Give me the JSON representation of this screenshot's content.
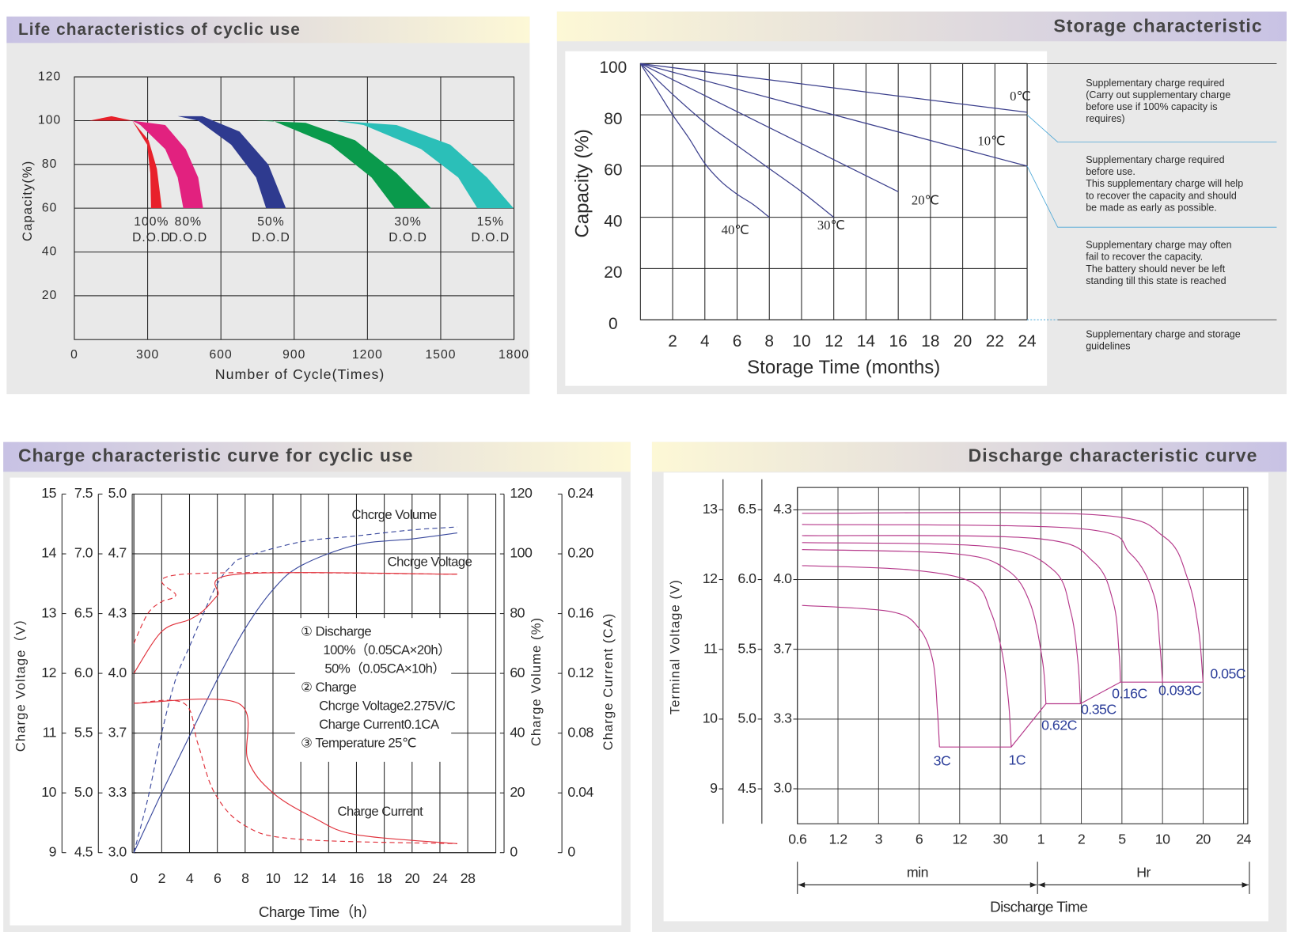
{
  "chart_data": [
    {
      "type": "band",
      "title": "Life characteristics of cyclic use",
      "xlabel": "Number of Cycle(Times)",
      "ylabel": "Capacity(%)",
      "xlim": [
        0,
        1800
      ],
      "ylim": [
        0,
        120
      ],
      "xticks": [
        0,
        300,
        600,
        900,
        1200,
        1500,
        1800
      ],
      "yticks": [
        20,
        40,
        60,
        80,
        100,
        120
      ],
      "series": [
        {
          "name_lines": [
            "100%",
            "D.O.D"
          ],
          "color": "#e8212b",
          "x": [
            61,
            152,
            237,
            304,
            338,
            358
          ],
          "values": [
            100,
            102,
            100,
            91,
            78,
            60
          ],
          "inner_x": [
            314,
            311,
            298,
            237
          ],
          "inner_values": [
            60,
            76,
            89,
            100
          ]
        },
        {
          "name_lines": [
            "80%",
            "D.O.D"
          ],
          "color": "#e2217f",
          "x": [
            237,
            372,
            456,
            507,
            527
          ],
          "values": [
            100,
            98,
            87,
            74,
            60
          ],
          "inner_x": [
            446,
            423,
            372,
            270
          ],
          "inner_values": [
            60,
            74,
            87,
            98
          ]
        },
        {
          "name_lines": [
            "50%",
            "D.O.D"
          ],
          "color": "#2e3a8f",
          "x": [
            423,
            524,
            676,
            794,
            866
          ],
          "values": [
            102,
            102,
            95,
            80,
            60
          ],
          "inner_x": [
            785,
            744,
            642,
            507
          ],
          "inner_values": [
            60,
            74,
            89,
            100
          ]
        },
        {
          "name_lines": [
            "30%",
            "D.O.D"
          ],
          "color": "#0a9a4c",
          "x": [
            744,
            947,
            1150,
            1319,
            1461
          ],
          "values": [
            100,
            99,
            91,
            76,
            60
          ],
          "inner_x": [
            1312,
            1217,
            1048,
            811
          ],
          "inner_values": [
            60,
            74,
            89,
            100
          ]
        },
        {
          "name_lines": [
            "15%",
            "D.O.D"
          ],
          "color": "#2bbfb8",
          "x": [
            1065,
            1319,
            1539,
            1690,
            1798
          ],
          "values": [
            100,
            98,
            89,
            74,
            60
          ],
          "inner_x": [
            1650,
            1572,
            1420,
            1184
          ],
          "inner_values": [
            60,
            74,
            87,
            98
          ]
        }
      ]
    },
    {
      "type": "line",
      "title": "Storage characteristic",
      "xlabel": "Storage Time (months)",
      "ylabel": "Capacity (%)",
      "xlim": [
        0,
        24
      ],
      "ylim": [
        0,
        100
      ],
      "xticks": [
        2,
        4,
        6,
        8,
        10,
        12,
        14,
        16,
        18,
        20,
        22,
        24
      ],
      "yticks": [
        0,
        20,
        40,
        60,
        80,
        100
      ],
      "color": "#3b3f8c",
      "series": [
        {
          "name": "0℃",
          "x": [
            0,
            24
          ],
          "values": [
            100,
            81
          ]
        },
        {
          "name": "10℃",
          "x": [
            0,
            24
          ],
          "values": [
            100,
            60
          ]
        },
        {
          "name": "20℃",
          "x": [
            0,
            16
          ],
          "values": [
            100,
            50
          ]
        },
        {
          "name": "30℃",
          "x": [
            0,
            2,
            4,
            6,
            8,
            10,
            12
          ],
          "values": [
            100,
            88,
            77,
            68,
            59,
            50,
            40
          ]
        },
        {
          "name": "40℃",
          "x": [
            0,
            1,
            2,
            3,
            4,
            5,
            6,
            7,
            8
          ],
          "values": [
            100,
            90,
            80,
            71,
            61,
            54,
            49,
            45,
            40
          ]
        }
      ],
      "notes": [
        [
          "Supplementary charge required",
          "(Carry out supplementary charge",
          "before use if 100% capacity is",
          "requires)"
        ],
        [
          "Supplementary charge required",
          "before use.",
          "This supplementary charge will help",
          "to recover the capacity and should",
          "be made  as early as possible."
        ],
        [
          "Supplementary charge may often",
          "fail to recover the capacity.",
          "The battery should never be left",
          "standing till this state is reached"
        ],
        [
          "Supplementary charge and storage",
          "guidelines"
        ]
      ]
    },
    {
      "type": "multi-axis-line",
      "title": "Charge characteristic curve for cyclic use",
      "xlabel": "Charge Time（h）",
      "ylabel": "Charge Voltage（V）",
      "y2label": "Charge Volume (%)",
      "y3label": "Charge Current (CA)",
      "xticks": [
        0,
        2,
        4,
        6,
        8,
        10,
        12,
        14,
        16,
        18,
        20,
        24,
        28
      ],
      "y_axes": [
        {
          "lim": [
            9,
            15
          ],
          "ticks": [
            15,
            14,
            13,
            12,
            11,
            10,
            9
          ]
        },
        {
          "lim": [
            4.5,
            7.5
          ],
          "ticks": [
            7.5,
            {
              "value": 7,
              "label": "7.0"
            },
            6.5,
            {
              "value": 6,
              "label": "6.0"
            },
            5.5,
            {
              "value": 5,
              "label": "5.0"
            },
            4.5
          ]
        },
        {
          "lim": [
            3,
            5
          ],
          "ticks": [
            {
              "value": 5,
              "label": "5.0"
            },
            {
              "value": 4.667,
              "label": "4.7"
            },
            {
              "value": 4.333,
              "label": "4.3"
            },
            {
              "value": 4,
              "label": "4.0"
            },
            {
              "value": 3.667,
              "label": "3.7"
            },
            {
              "value": 3.333,
              "label": "3.3"
            },
            {
              "value": 3,
              "label": "3.0"
            }
          ]
        },
        {
          "lim": [
            0,
            120
          ],
          "ticks": [
            120,
            100,
            80,
            60,
            40,
            20,
            0
          ]
        },
        {
          "lim": [
            0,
            0.24
          ],
          "ticks": [
            0.24,
            {
              "value": 0.2,
              "label": "0.20"
            },
            0.16,
            0.12,
            0.08,
            0.04,
            0
          ]
        }
      ],
      "series": [
        {
          "axis": 3,
          "dashed": false,
          "color": "#3b4a9e",
          "x": [
            0,
            2,
            4,
            6,
            8,
            10,
            12,
            16,
            20,
            26.5
          ],
          "values": [
            0,
            20,
            39,
            58,
            75,
            88,
            96,
            103,
            105,
            107
          ]
        },
        {
          "axis": 3,
          "dashed": true,
          "color": "#3b4a9e",
          "x": [
            0,
            1,
            2,
            3,
            4,
            5,
            6,
            7,
            8,
            12,
            16,
            20,
            26.5
          ],
          "values": [
            0,
            18,
            40,
            58,
            69,
            80,
            90,
            96,
            99,
            104,
            106,
            108,
            109
          ]
        },
        {
          "axis": 0,
          "dashed": false,
          "color": "#e0303a",
          "x": [
            0,
            2,
            4,
            5,
            6,
            7.5,
            26.5
          ],
          "values": [
            12,
            12.7,
            12.9,
            13.05,
            13.3,
            13.66,
            13.66
          ]
        },
        {
          "axis": 0,
          "dashed": true,
          "color": "#e0303a",
          "x": [
            0,
            1,
            2,
            3,
            3.6,
            26.5
          ],
          "values": [
            12.5,
            13,
            13.2,
            13.3,
            13.66,
            13.66
          ]
        },
        {
          "axis": 4,
          "dashed": false,
          "color": "#e0303a",
          "x": [
            0,
            7.5,
            8.2,
            10,
            13,
            16,
            26.5
          ],
          "values": [
            0.1,
            0.1,
            0.062,
            0.04,
            0.023,
            0.012,
            0.006
          ]
        },
        {
          "axis": 4,
          "dashed": true,
          "color": "#e0303a",
          "x": [
            0,
            3.6,
            4.6,
            5.8,
            8,
            11.8,
            26.5
          ],
          "values": [
            0.1,
            0.1,
            0.073,
            0.04,
            0.018,
            0.009,
            0.006
          ]
        }
      ],
      "annotations": [
        "Chcrge Volume",
        "Chcrge Voltage",
        "Charge Current"
      ],
      "legend_lines": [
        "① Discharge",
        "100%（0.05CA×20h）",
        "50%（0.05CA×10h）",
        "② Charge",
        "Chcrge Voltage2.275V/C",
        "Charge Current0.1CA",
        "③ Temperature 25℃"
      ]
    },
    {
      "type": "discharge",
      "title": "Discharge characteristic curve",
      "xlabel": "Discharge Time",
      "ylabel": "Terminal Voltage (V)",
      "xlabel_min": "min",
      "xlabel_hr": "Hr",
      "xticks_min": [
        0.6,
        1.2,
        3,
        6,
        12,
        30
      ],
      "xticks_hr": [
        1,
        2,
        5,
        10,
        20,
        24
      ],
      "y_axes": [
        {
          "lim": [
            8.5,
            13.32
          ],
          "ticks": [
            13,
            12,
            11,
            10,
            9
          ]
        },
        {
          "lim": [
            4.25,
            6.66
          ],
          "ticks": [
            6.5,
            {
              "value": 6,
              "label": "6.0"
            },
            5.5,
            {
              "value": 5,
              "label": "5.0"
            },
            4.5
          ]
        },
        {
          "lim": [
            2.833,
            4.44
          ],
          "ticks": [
            {
              "value": 4.333,
              "label": "4.3"
            },
            {
              "value": 4,
              "label": "4.0"
            },
            {
              "value": 3.667,
              "label": "3.7"
            },
            {
              "value": 3.333,
              "label": "3.3"
            },
            {
              "value": 3,
              "label": "3.0"
            }
          ]
        }
      ],
      "color": "#b5388a",
      "label_color": "#2c3e9a",
      "series": [
        {
          "name": "3C",
          "x": [
            0.65,
            3.7,
            6,
            7.6,
            8.2,
            8.5
          ],
          "values": [
            11.63,
            11.54,
            11.3,
            10.83,
            10.12,
            9.6
          ]
        },
        {
          "name": "1C",
          "x": [
            0.65,
            5.1,
            15.9,
            24.2,
            31,
            34.6,
            36.2
          ],
          "values": [
            12.2,
            12.14,
            11.96,
            11.54,
            10.95,
            10.24,
            9.6
          ]
        },
        {
          "name": "0.62C",
          "x": [
            0.65,
            11.1,
            33.6,
            50,
            61.8,
            65.5
          ],
          "values": [
            12.43,
            12.37,
            12.14,
            11.66,
            10.83,
            10.22
          ]
        },
        {
          "name": "0.35C",
          "x": [
            0.65,
            24.2,
            74,
            100,
            113,
            118
          ],
          "values": [
            12.53,
            12.47,
            12.14,
            11.54,
            10.83,
            10.22
          ]
        },
        {
          "name": "0.16C",
          "x": [
            0.65,
            54.5,
            159,
            248,
            281,
            290
          ],
          "values": [
            12.63,
            12.59,
            12.25,
            11.66,
            10.95,
            10.53
          ]
        },
        {
          "name": "0.093C",
          "x": [
            0.65,
            117,
            347,
            517,
            573,
            600
          ],
          "values": [
            12.79,
            12.73,
            12.37,
            11.78,
            11.07,
            10.53
          ]
        },
        {
          "name": "0.05C",
          "x": [
            0.65,
            159,
            619,
            919,
            1107,
            1200
          ],
          "values": [
            12.95,
            12.93,
            12.61,
            12.02,
            11.31,
            10.53
          ]
        }
      ]
    }
  ]
}
